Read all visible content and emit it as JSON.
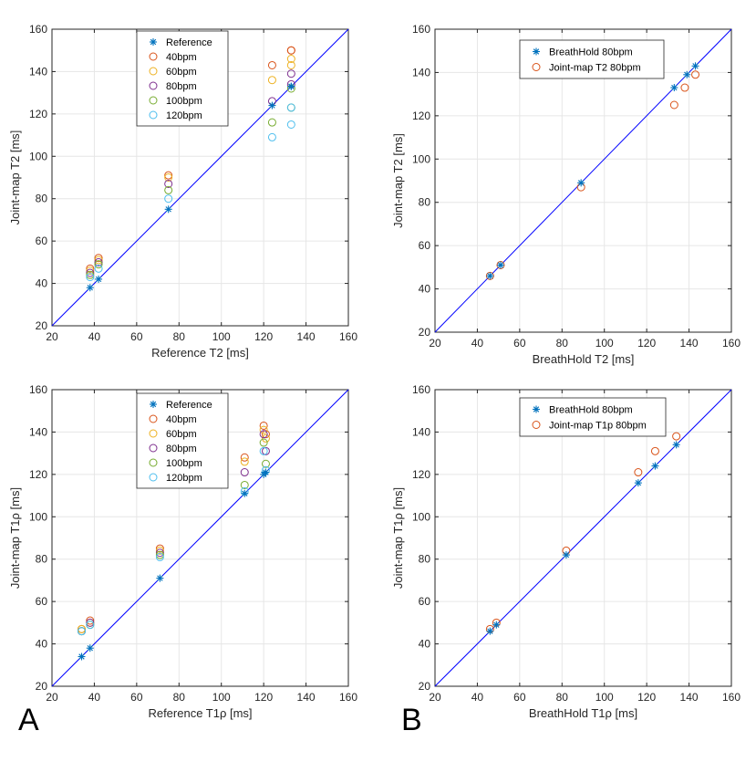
{
  "panel_letters": [
    "A",
    "B"
  ],
  "colors": {
    "reference": "#0072BD",
    "40bpm": "#D95319",
    "60bpm": "#EDB120",
    "80bpm": "#7E2F8E",
    "100bpm": "#77AC30",
    "120bpm": "#4DBEEE",
    "identity_line": "#0000FF",
    "grid": "#E6E6E6",
    "axes": "#262626"
  },
  "chart_data": [
    {
      "type": "scatter",
      "panel": "top-left",
      "xlabel": "Reference T2 [ms]",
      "ylabel": "Joint-map T2 [ms]",
      "xlim": [
        20,
        160
      ],
      "ylim": [
        20,
        160
      ],
      "xticks": [
        20,
        40,
        60,
        80,
        100,
        120,
        140,
        160
      ],
      "yticks": [
        20,
        40,
        60,
        80,
        100,
        120,
        140,
        160
      ],
      "grid": true,
      "identity_line": true,
      "legend_position": "top-center",
      "series": [
        {
          "name": "Reference",
          "marker": "asterisk",
          "color_key": "reference",
          "points": [
            [
              38,
              38
            ],
            [
              42,
              42
            ],
            [
              75,
              75
            ],
            [
              124,
              124
            ],
            [
              133,
              133
            ],
            [
              133,
              133
            ]
          ]
        },
        {
          "name": "40bpm",
          "marker": "circle",
          "color_key": "40bpm",
          "points": [
            [
              38,
              47
            ],
            [
              42,
              52
            ],
            [
              75,
              91
            ],
            [
              124,
              143
            ],
            [
              133,
              150
            ],
            [
              133,
              150
            ]
          ]
        },
        {
          "name": "60bpm",
          "marker": "circle",
          "color_key": "60bpm",
          "points": [
            [
              38,
              46
            ],
            [
              42,
              51
            ],
            [
              75,
              90
            ],
            [
              124,
              136
            ],
            [
              133,
              146
            ],
            [
              133,
              143
            ]
          ]
        },
        {
          "name": "80bpm",
          "marker": "circle",
          "color_key": "80bpm",
          "points": [
            [
              38,
              45
            ],
            [
              42,
              50
            ],
            [
              75,
              87
            ],
            [
              124,
              126
            ],
            [
              133,
              139
            ],
            [
              133,
              134
            ]
          ]
        },
        {
          "name": "100bpm",
          "marker": "circle",
          "color_key": "100bpm",
          "points": [
            [
              38,
              44
            ],
            [
              42,
              49
            ],
            [
              75,
              84
            ],
            [
              124,
              116
            ],
            [
              133,
              123
            ],
            [
              133,
              132
            ]
          ]
        },
        {
          "name": "120bpm",
          "marker": "circle",
          "color_key": "120bpm",
          "points": [
            [
              38,
              43
            ],
            [
              42,
              47
            ],
            [
              75,
              80
            ],
            [
              124,
              109
            ],
            [
              133,
              115
            ],
            [
              133,
              123
            ]
          ]
        }
      ]
    },
    {
      "type": "scatter",
      "panel": "top-right",
      "xlabel": "BreathHold T2 [ms]",
      "ylabel": "Joint-map T2 [ms]",
      "xlim": [
        20,
        160
      ],
      "ylim": [
        20,
        160
      ],
      "xticks": [
        20,
        40,
        60,
        80,
        100,
        120,
        140,
        160
      ],
      "yticks": [
        20,
        40,
        60,
        80,
        100,
        120,
        140,
        160
      ],
      "grid": true,
      "identity_line": true,
      "legend_position": "top-center",
      "series": [
        {
          "name": "BreathHold 80bpm",
          "marker": "asterisk",
          "color_key": "reference",
          "points": [
            [
              46,
              46
            ],
            [
              51,
              51
            ],
            [
              89,
              89
            ],
            [
              133,
              133
            ],
            [
              139,
              139
            ],
            [
              143,
              143
            ]
          ]
        },
        {
          "name": "Joint-map T2 80bpm",
          "marker": "circle",
          "color_key": "40bpm",
          "points": [
            [
              46,
              46
            ],
            [
              51,
              51
            ],
            [
              89,
              87
            ],
            [
              133,
              125
            ],
            [
              138,
              133
            ],
            [
              143,
              139
            ]
          ]
        }
      ]
    },
    {
      "type": "scatter",
      "panel": "bottom-left",
      "xlabel": "Reference T1ρ [ms]",
      "ylabel": "Joint-map T1ρ [ms]",
      "xlim": [
        20,
        160
      ],
      "ylim": [
        20,
        160
      ],
      "xticks": [
        20,
        40,
        60,
        80,
        100,
        120,
        140,
        160
      ],
      "yticks": [
        20,
        40,
        60,
        80,
        100,
        120,
        140,
        160
      ],
      "grid": true,
      "identity_line": true,
      "legend_position": "top-center",
      "series": [
        {
          "name": "Reference",
          "marker": "asterisk",
          "color_key": "reference",
          "points": [
            [
              34,
              34
            ],
            [
              38,
              38
            ],
            [
              71,
              71
            ],
            [
              111,
              111
            ],
            [
              120,
              120
            ],
            [
              121,
              121
            ]
          ]
        },
        {
          "name": "40bpm",
          "marker": "circle",
          "color_key": "40bpm",
          "points": [
            [
              34,
              47
            ],
            [
              38,
              51
            ],
            [
              71,
              85
            ],
            [
              111,
              128
            ],
            [
              120,
              143
            ],
            [
              121,
              139
            ]
          ]
        },
        {
          "name": "60bpm",
          "marker": "circle",
          "color_key": "60bpm",
          "points": [
            [
              34,
              47
            ],
            [
              38,
              50
            ],
            [
              71,
              84
            ],
            [
              111,
              126
            ],
            [
              120,
              141
            ],
            [
              121,
              137
            ]
          ]
        },
        {
          "name": "80bpm",
          "marker": "circle",
          "color_key": "80bpm",
          "points": [
            [
              34,
              46
            ],
            [
              38,
              50
            ],
            [
              71,
              83
            ],
            [
              111,
              121
            ],
            [
              120,
              139
            ],
            [
              121,
              131
            ]
          ]
        },
        {
          "name": "100bpm",
          "marker": "circle",
          "color_key": "100bpm",
          "points": [
            [
              34,
              46
            ],
            [
              38,
              49
            ],
            [
              71,
              82
            ],
            [
              111,
              115
            ],
            [
              120,
              135
            ],
            [
              121,
              125
            ]
          ]
        },
        {
          "name": "120bpm",
          "marker": "circle",
          "color_key": "120bpm",
          "points": [
            [
              34,
              46
            ],
            [
              38,
              49
            ],
            [
              71,
              81
            ],
            [
              111,
              112
            ],
            [
              120,
              131
            ],
            [
              121,
              122
            ]
          ]
        }
      ]
    },
    {
      "type": "scatter",
      "panel": "bottom-right",
      "xlabel": "BreathHold T1ρ [ms]",
      "ylabel": "Joint-map T1ρ [ms]",
      "xlim": [
        20,
        160
      ],
      "ylim": [
        20,
        160
      ],
      "xticks": [
        20,
        40,
        60,
        80,
        100,
        120,
        140,
        160
      ],
      "yticks": [
        20,
        40,
        60,
        80,
        100,
        120,
        140,
        160
      ],
      "grid": true,
      "identity_line": true,
      "legend_position": "top-center",
      "series": [
        {
          "name": "BreathHold 80bpm",
          "marker": "asterisk",
          "color_key": "reference",
          "points": [
            [
              46,
              46
            ],
            [
              49,
              49
            ],
            [
              82,
              82
            ],
            [
              116,
              116
            ],
            [
              124,
              124
            ],
            [
              134,
              134
            ]
          ]
        },
        {
          "name": "Joint-map T1p 80bpm",
          "marker": "circle",
          "color_key": "40bpm",
          "points": [
            [
              46,
              47
            ],
            [
              49,
              50
            ],
            [
              82,
              84
            ],
            [
              116,
              121
            ],
            [
              124,
              131
            ],
            [
              134,
              138
            ]
          ]
        }
      ]
    }
  ]
}
